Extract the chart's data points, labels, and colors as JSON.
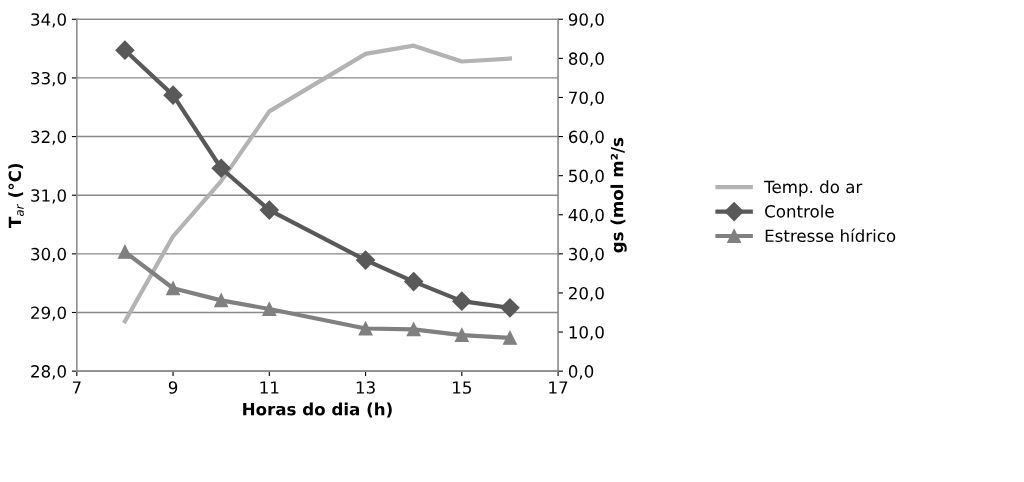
{
  "chart_data": {
    "type": "line",
    "xlabel": "Horas do dia (h)",
    "ylabel": "T$_{ar}$ (°C)",
    "y2label": "gs (mol m²/s",
    "x": [
      8,
      9,
      10,
      11,
      13,
      14,
      15,
      16
    ],
    "xlim": [
      7,
      17
    ],
    "xticks": [
      7,
      9,
      11,
      13,
      15,
      17
    ],
    "ylim": [
      28,
      34
    ],
    "yticks": [
      {
        "value": 28,
        "label": "28,0"
      },
      {
        "value": 29,
        "label": "29,0"
      },
      {
        "value": 30,
        "label": "30,0"
      },
      {
        "value": 31,
        "label": "31,0"
      },
      {
        "value": 32,
        "label": "32,0"
      },
      {
        "value": 33,
        "label": "33,0"
      },
      {
        "value": 34,
        "label": "34,0"
      }
    ],
    "y2lim": [
      0,
      90
    ],
    "y2ticks": [
      {
        "value": 0,
        "label": "0,0"
      },
      {
        "value": 10,
        "label": "10,0"
      },
      {
        "value": 20,
        "label": "20,0"
      },
      {
        "value": 30,
        "label": "30,0"
      },
      {
        "value": 40,
        "label": "40,0"
      },
      {
        "value": 50,
        "label": "50,0"
      },
      {
        "value": 60,
        "label": "60,0"
      },
      {
        "value": 70,
        "label": "70,0"
      },
      {
        "value": 80,
        "label": "80,0"
      },
      {
        "value": 90,
        "label": "90,0"
      }
    ],
    "grid": "y",
    "legend": "right",
    "line_style": "solid",
    "series": [
      {
        "name": "Temp. do ar",
        "color": "#b3b3b3",
        "marker": "none",
        "values": [
          28.85,
          30.3,
          31.24,
          32.43,
          33.41,
          33.55,
          33.28,
          33.33
        ]
      },
      {
        "name": "Controle",
        "color": "#595959",
        "marker": "diamond",
        "axis": "y2",
        "values": [
          82.1,
          70.6,
          51.9,
          41.2,
          28.4,
          22.9,
          17.9,
          16.2
        ]
      },
      {
        "name": "Estresse hídrico",
        "color": "#808080",
        "marker": "triangle",
        "axis": "y2",
        "values": [
          30.5,
          21.2,
          18.1,
          15.9,
          10.9,
          10.7,
          9.2,
          8.5
        ]
      }
    ]
  }
}
